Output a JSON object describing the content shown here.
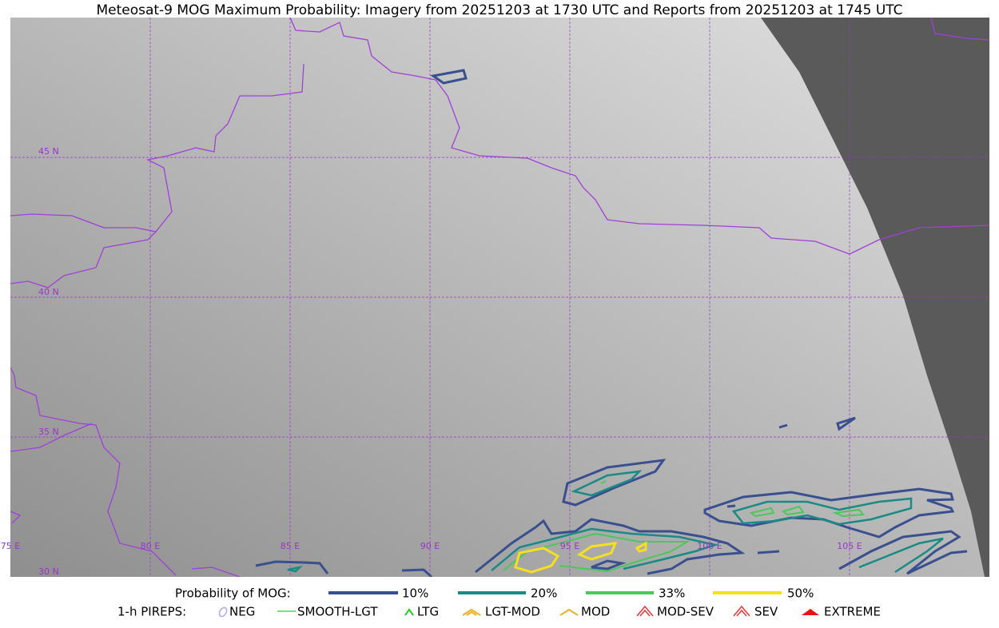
{
  "title": "Meteosat-9 MOG Maximum Probability: Imagery from 20251203 at 1730 UTC and Reports from 20251203 at 1745 UTC",
  "latitude_labels": [
    "45 N",
    "40 N",
    "35 N",
    "30 N"
  ],
  "longitude_labels": [
    "75 E",
    "80 E",
    "85 E",
    "90 E",
    "95 E",
    "100 E",
    "105 E"
  ],
  "legend": {
    "probability": {
      "label": "Probability of MOG:",
      "items": [
        "10%",
        "20%",
        "33%",
        "50%"
      ]
    },
    "pireps": {
      "label": "1-h PIREPS:",
      "items": [
        "NEG",
        "SMOOTH-LGT",
        "LTG",
        "LGT-MOD",
        "MOD",
        "MOD-SEV",
        "SEV",
        "EXTREME"
      ]
    }
  }
}
